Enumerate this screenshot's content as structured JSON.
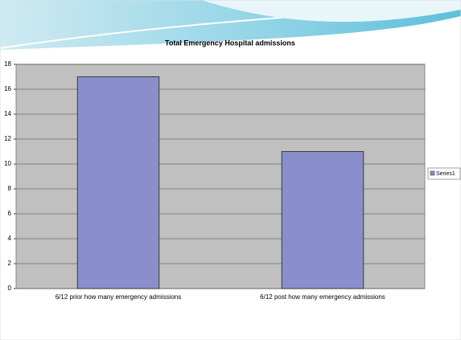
{
  "chart_data": {
    "type": "bar",
    "title": "Total Emergency Hospital admissions",
    "categories": [
      "6/12 prior how many emergency admissions",
      "6/12 post how many emergency admissions"
    ],
    "series": [
      {
        "name": "Series1",
        "color": "#8a8fcb",
        "values": [
          17,
          11
        ]
      }
    ],
    "ylim": [
      0,
      18
    ],
    "yticks": [
      0,
      2,
      4,
      6,
      8,
      10,
      12,
      14,
      16,
      18
    ],
    "grid": true,
    "legend": "right"
  }
}
